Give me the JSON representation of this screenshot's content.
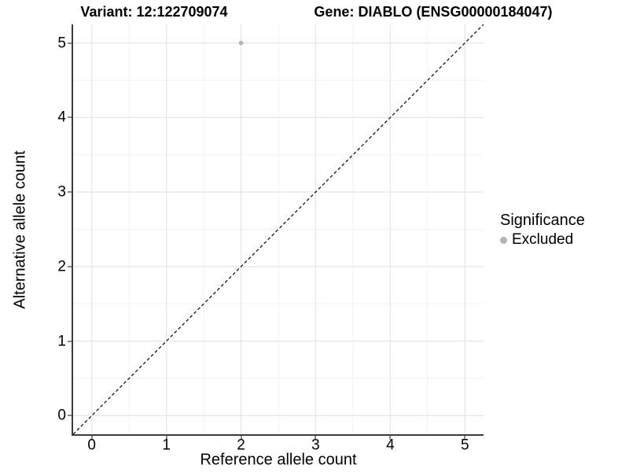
{
  "titles": {
    "variant": "Variant: 12:122709074",
    "gene": "Gene: DIABLO (ENSG00000184047)"
  },
  "axes": {
    "x": {
      "label": "Reference allele count",
      "ticks": [
        0,
        1,
        2,
        3,
        4,
        5
      ],
      "range": [
        -0.25,
        5.25
      ]
    },
    "y": {
      "label": "Alternative allele count",
      "ticks": [
        0,
        1,
        2,
        3,
        4,
        5
      ],
      "range": [
        -0.25,
        5.25
      ]
    }
  },
  "legend": {
    "title": "Significance",
    "items": [
      {
        "label": "Excluded",
        "color": "#b3b3b3"
      }
    ]
  },
  "colors": {
    "grid_major": "#e6e6e6",
    "grid_minor": "#f2f2f2",
    "axis_line": "#3c3c3c",
    "tick_mark": "#8a8a8a",
    "reference_line": "#000000",
    "point_excluded": "#b3b3b3"
  },
  "chart_data": {
    "type": "scatter",
    "title": "Variant: 12:122709074 | Gene: DIABLO (ENSG00000184047)",
    "xlabel": "Reference allele count",
    "ylabel": "Alternative allele count",
    "xlim": [
      -0.25,
      5.25
    ],
    "ylim": [
      -0.25,
      5.25
    ],
    "x_ticks": [
      0,
      1,
      2,
      3,
      4,
      5
    ],
    "y_ticks": [
      0,
      1,
      2,
      3,
      4,
      5
    ],
    "grid": "major and minor (0.5 steps), light grey on white",
    "legend_position": "right",
    "series": [
      {
        "name": "Excluded",
        "color": "#b3b3b3",
        "marker": "circle",
        "points": [
          {
            "x": 2,
            "y": 5
          }
        ]
      }
    ],
    "reference_line": {
      "kind": "identity y=x",
      "style": "dashed",
      "color": "#000000",
      "from": [
        -0.25,
        -0.25
      ],
      "to": [
        5.25,
        5.25
      ]
    }
  }
}
